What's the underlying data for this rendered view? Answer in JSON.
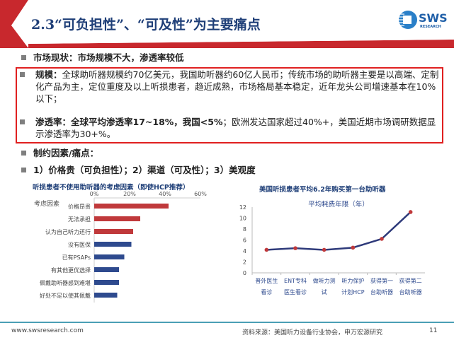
{
  "header": {
    "title": "2.3“可负担性”、“可及性”为主要痛点",
    "logo_text": "SWS",
    "logo_subtext": "RESEARCH",
    "accent": "#c8282d"
  },
  "bullets": [
    {
      "text": "市场现状：市场规模不大，渗透率较低"
    },
    {
      "label": "规模：",
      "text": "全球助听器规模约70亿美元，我国助听器约60亿人民币；传统市场的助听器主要是以高端、定制化产品为主，定位重度及以上听损患者，趋近成熟，市场格局基本稳定，近年龙头公司增速基本在10%以下；"
    },
    {
      "label": "渗透率：全球平均渗透率17~18%，我国<5%",
      "text": "；欧洲发达国家超过40%+，美国近期市场调研数据显示渗透率为30+%。"
    },
    {
      "text": "制约因素/痛点："
    },
    {
      "text": "1）价格贵（可负担性）；2）渠道（可及性）；3）美观度"
    }
  ],
  "chart_data": [
    {
      "type": "bar",
      "orientation": "horizontal",
      "title": "听损患者不使用助听器的考虑因素（即使HCP推荐）",
      "ylabel": "考虑因素",
      "categories": [
        "价格昂贵",
        "无法承担",
        "认为自己听力还行",
        "没有医保",
        "已有PSAPs",
        "有其他更优选择",
        "佩戴助听器感到难堪",
        "好处不足以使其佩戴"
      ],
      "values": [
        42,
        26,
        22,
        21,
        17,
        14,
        14,
        13
      ],
      "colors": [
        "#c0393b",
        "#c0393b",
        "#c0393b",
        "#2e4a8e",
        "#2e4a8e",
        "#2e4a8e",
        "#2e4a8e",
        "#2e4a8e"
      ],
      "xticks": [
        "0%",
        "20%",
        "40%",
        "60%"
      ],
      "xlim": [
        0,
        60
      ],
      "axis_position": "top"
    },
    {
      "type": "line",
      "title": "美国听损患者平均6.2年购买第一台助听器",
      "series": [
        {
          "name": "平均耗费年限（年）",
          "values": [
            4.2,
            4.5,
            4.2,
            4.6,
            6.2,
            11.1
          ]
        }
      ],
      "categories": [
        [
          "普外医生",
          "看诊"
        ],
        [
          "ENT专科",
          "医生看诊"
        ],
        [
          "做听力测",
          "试"
        ],
        [
          "听力保护",
          "计划HCP"
        ],
        [
          "获得第一",
          "台助听器"
        ],
        [
          "获得第二",
          "台助听器"
        ]
      ],
      "yticks": [
        "0",
        "2",
        "4",
        "6",
        "8",
        "10",
        "12"
      ],
      "ylim": [
        0,
        12
      ],
      "line_color": "#2e3a7a",
      "marker_color": "#c0393b"
    }
  ],
  "footer": {
    "url": "www.swsresearch.com",
    "source": "资料来源：美国听力设备行业协会，申万宏源研究",
    "page": "11"
  }
}
